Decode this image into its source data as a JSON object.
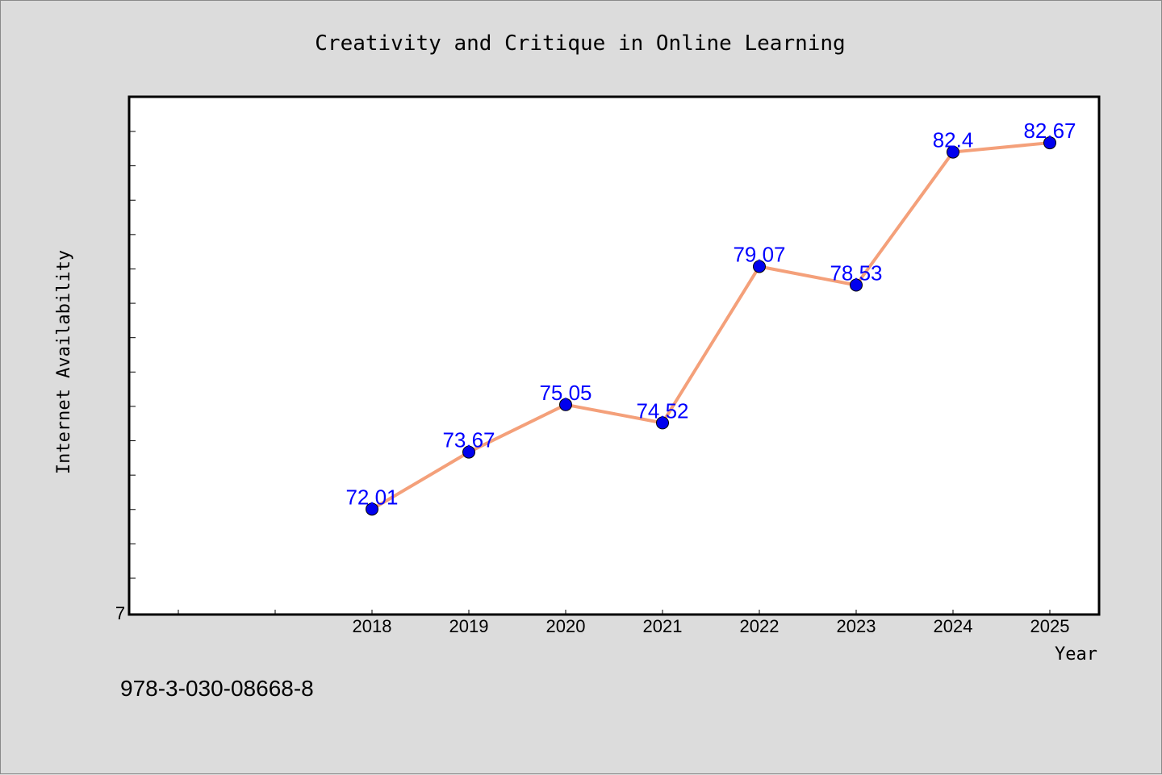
{
  "chart_data": {
    "type": "line",
    "title": "Creativity and Critique in Online Learning",
    "xlabel": "Year",
    "ylabel": "Internet Availability",
    "categories": [
      "2018",
      "2019",
      "2020",
      "2021",
      "2022",
      "2023",
      "2024",
      "2025"
    ],
    "series": [
      {
        "values": [
          72.01,
          73.67,
          75.05,
          74.52,
          79.07,
          78.53,
          82.4,
          82.67
        ],
        "line_color": "#f4a07a",
        "marker_color": "#0000ee",
        "label_color": "#0000ff"
      }
    ],
    "y_origin_label": "7",
    "ylim": [
      69.5,
      84.5
    ],
    "grid": false,
    "legend": "none"
  },
  "footer": {
    "isbn": "978-3-030-08668-8"
  }
}
